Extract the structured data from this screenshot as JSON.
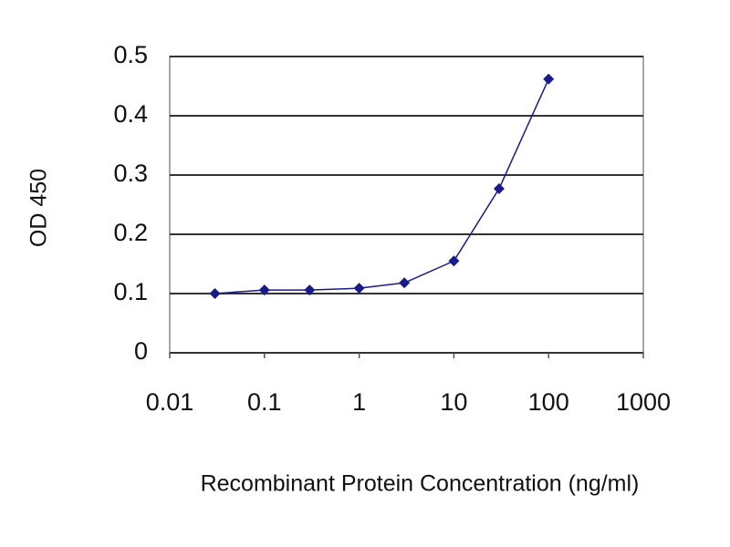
{
  "chart_data": {
    "type": "line",
    "x_label": "Recombinant Protein Concentration (ng/ml)",
    "y_label": "OD 450",
    "x": [
      0.03,
      0.1,
      0.3,
      1,
      3,
      10,
      30,
      100
    ],
    "series": [
      {
        "color": "#1a1a8c",
        "values": [
          0.1,
          0.106,
          0.106,
          0.109,
          0.118,
          0.155,
          0.277,
          0.462
        ]
      }
    ],
    "xscale": "log",
    "marker": "diamond",
    "xlim": [
      0.01,
      1000
    ],
    "xticks": [
      0.01,
      0.1,
      1,
      10,
      100,
      1000
    ],
    "ylim": [
      0,
      0.5
    ],
    "yticks": [
      0,
      0.1,
      0.2,
      0.3,
      0.4,
      0.5
    ],
    "grid": true
  }
}
